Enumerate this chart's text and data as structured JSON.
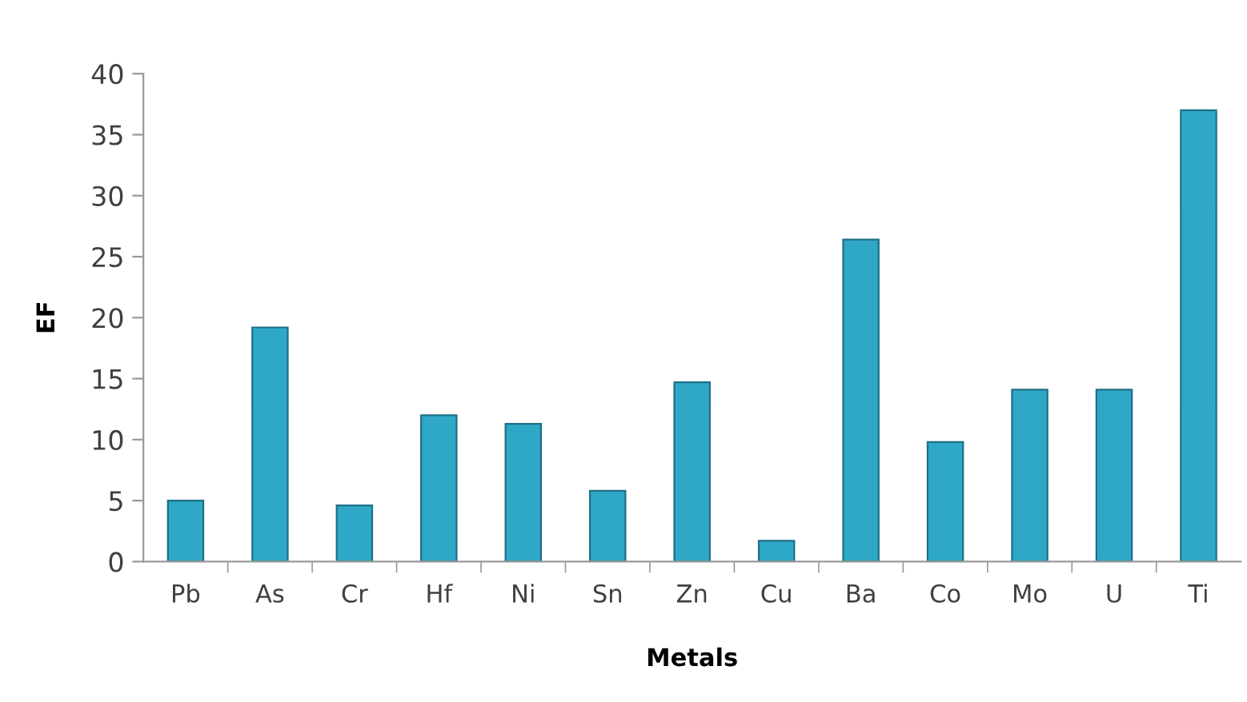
{
  "chart_data": {
    "type": "bar",
    "xlabel": "Metals",
    "ylabel": "EF",
    "categories": [
      "Pb",
      "As",
      "Cr",
      "Hf",
      "Ni",
      "Sn",
      "Zn",
      "Cu",
      "Ba",
      "Co",
      "Mo",
      "U",
      "Ti"
    ],
    "values": [
      5.0,
      19.2,
      4.6,
      12.0,
      11.3,
      5.8,
      14.7,
      1.7,
      26.4,
      9.8,
      14.1,
      14.1,
      37.0
    ],
    "color": "#2fa8c8",
    "ylim": [
      0,
      40
    ],
    "yticks": [
      0,
      5,
      10,
      15,
      20,
      25,
      30,
      35,
      40
    ],
    "grid": false,
    "legend": false
  }
}
